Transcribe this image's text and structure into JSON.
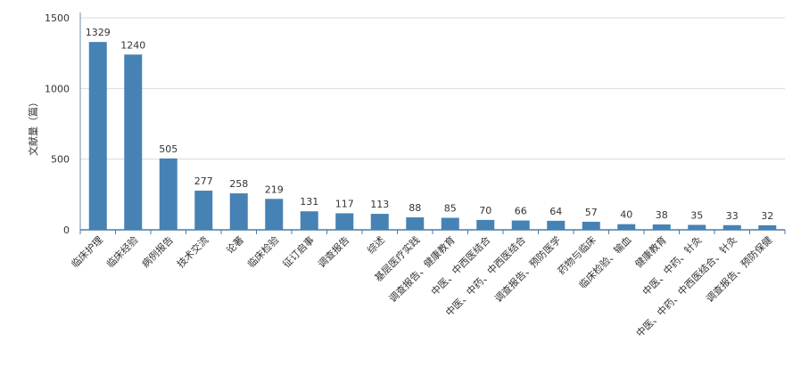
{
  "chart_data": {
    "type": "bar",
    "title": "",
    "xlabel": "",
    "ylabel": "文献量（篇）",
    "ylim": [
      0,
      1500
    ],
    "yticks": [
      0,
      500,
      1000,
      1500
    ],
    "grid": true,
    "legend": "none",
    "color": "#4682b4",
    "categories": [
      "临床护理",
      "临床经验",
      "病例报告",
      "技术交流",
      "论著",
      "临床检验",
      "征订启事",
      "调查报告",
      "综述",
      "基层医疗实践",
      "调查报告、健康教育",
      "中医、中西医结合",
      "中医、中药、中西医结合",
      "调查报告、预防医学",
      "药物与临床",
      "临床检验、输血",
      "健康教育",
      "中医、中药、针灸",
      "中医、中药、中西医结合、针灸",
      "调查报告、预防保健"
    ],
    "values": [
      1329,
      1240,
      505,
      277,
      258,
      219,
      131,
      117,
      113,
      88,
      85,
      70,
      66,
      64,
      57,
      40,
      38,
      35,
      33,
      32
    ]
  }
}
